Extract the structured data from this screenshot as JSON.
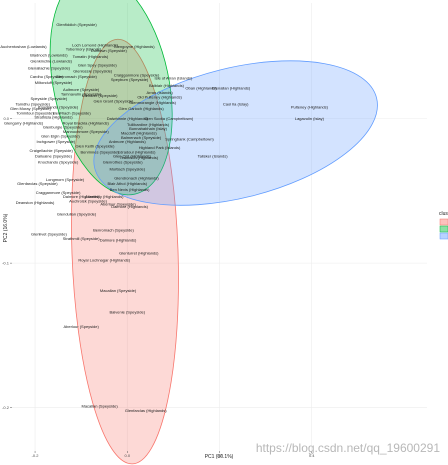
{
  "chart_data": {
    "type": "scatter",
    "xlabel": "PC1 (30.1%)",
    "ylabel": "PC2 (16.0%)",
    "xlim": [
      -0.25,
      0.65
    ],
    "ylim": [
      -0.23,
      0.08
    ],
    "x_ticks": [
      "-0.2",
      "0.0",
      "0.2",
      "0.4"
    ],
    "x_tick_values": [
      -0.2,
      0.0,
      0.2,
      0.4
    ],
    "y_ticks": [
      "0.0",
      "-0.1",
      "-0.2"
    ],
    "y_tick_values": [
      0.0,
      -0.1,
      -0.2
    ],
    "grid": true,
    "legend": {
      "title": "cluster",
      "position": "right",
      "colors": [
        "#F8766D",
        "#00BA38",
        "#619CFF"
      ]
    },
    "groups": [
      {
        "color": "#F8766D",
        "center": [
          -0.005,
          -0.092
        ],
        "rx": 0.115,
        "ry": 0.147,
        "angle": -2
      },
      {
        "color": "#00BA38",
        "center": [
          -0.035,
          0.024
        ],
        "rx": 0.125,
        "ry": 0.078,
        "angle": -12
      },
      {
        "color": "#619CFF",
        "center": [
          0.235,
          -0.01
        ],
        "rx": 0.315,
        "ry": 0.045,
        "angle": -14
      }
    ],
    "points": [
      {
        "name": "Glenfiddich (Speyside)",
        "x": -0.11,
        "y": 0.064
      },
      {
        "name": "Auchentoshan (Lowlands)",
        "x": -0.225,
        "y": 0.049
      },
      {
        "name": "Loch Lomond (Highlands)",
        "x": -0.07,
        "y": 0.05
      },
      {
        "name": "Glengoyne (Highlands)",
        "x": 0.015,
        "y": 0.049
      },
      {
        "name": "Tobermory (Islands)",
        "x": -0.095,
        "y": 0.047
      },
      {
        "name": "Dufftown (Speyside)",
        "x": -0.04,
        "y": 0.046
      },
      {
        "name": "Bladnoch (Lowlands)",
        "x": -0.17,
        "y": 0.043
      },
      {
        "name": "Tomatin (Highlands)",
        "x": -0.08,
        "y": 0.042
      },
      {
        "name": "Glenkinchie (Lowlands)",
        "x": -0.165,
        "y": 0.039
      },
      {
        "name": "Glen Spey (Speyside)",
        "x": -0.065,
        "y": 0.036
      },
      {
        "name": "Glenallachie (Speyside)",
        "x": -0.17,
        "y": 0.034
      },
      {
        "name": "Glenlossie (Speyside)",
        "x": -0.075,
        "y": 0.032
      },
      {
        "name": "Craigganmore (Speyside)",
        "x": 0.02,
        "y": 0.029
      },
      {
        "name": "Cardhu (Speyside)",
        "x": -0.175,
        "y": 0.028
      },
      {
        "name": "Benromach (Speyside)",
        "x": -0.11,
        "y": 0.028
      },
      {
        "name": "Isle of Arran (Islands)",
        "x": 0.1,
        "y": 0.027
      },
      {
        "name": "Speyburn (Speyside)",
        "x": 0.005,
        "y": 0.026
      },
      {
        "name": "Miltonduff (Speyside)",
        "x": -0.16,
        "y": 0.024
      },
      {
        "name": "Balblair (Highlands)",
        "x": 0.085,
        "y": 0.022
      },
      {
        "name": "Oban (Highlands)",
        "x": 0.16,
        "y": 0.02
      },
      {
        "name": "Glenallan (Highlands)",
        "x": 0.225,
        "y": 0.02
      },
      {
        "name": "Aultmore (Speyside)",
        "x": -0.1,
        "y": 0.019
      },
      {
        "name": "Arran (Islands)",
        "x": 0.07,
        "y": 0.017
      },
      {
        "name": "Tamnavulin (Speyside)",
        "x": -0.1,
        "y": 0.016
      },
      {
        "name": "Glenlivet (Speyside)",
        "x": -0.06,
        "y": 0.015
      },
      {
        "name": "Old Pulteney (Highlands)",
        "x": 0.07,
        "y": 0.014
      },
      {
        "name": "Speyside (Speyside)",
        "x": -0.17,
        "y": 0.013
      },
      {
        "name": "Glen Grant (Speyside)",
        "x": -0.03,
        "y": 0.011
      },
      {
        "name": "Glenmorangie (Highlands)",
        "x": 0.055,
        "y": 0.01
      },
      {
        "name": "Caol Ila (Islay)",
        "x": 0.235,
        "y": 0.009
      },
      {
        "name": "Tamdhu (Speyside)",
        "x": -0.205,
        "y": 0.009
      },
      {
        "name": "Knockando (Speyside)",
        "x": -0.15,
        "y": 0.007
      },
      {
        "name": "Glen Moray (Speyside)",
        "x": -0.21,
        "y": 0.006
      },
      {
        "name": "Glen Garioch (Highlands)",
        "x": 0.03,
        "y": 0.006
      },
      {
        "name": "Pulteney (Highlands)",
        "x": 0.395,
        "y": 0.007
      },
      {
        "name": "Tomintoul (Speyside)",
        "x": -0.2,
        "y": 0.003
      },
      {
        "name": "BenRiach (Speyside)",
        "x": -0.12,
        "y": 0.003
      },
      {
        "name": "Glen Scotia (Campbeltown)",
        "x": 0.09,
        "y": -0.001
      },
      {
        "name": "Lagavulin (Islay)",
        "x": 0.395,
        "y": -0.001
      },
      {
        "name": "Strathisla (Highlands)",
        "x": -0.16,
        "y": 0.0
      },
      {
        "name": "Dalwhinnie (Highlands)",
        "x": 0.0,
        "y": -0.001
      },
      {
        "name": "Glengarry (Highlands)",
        "x": -0.225,
        "y": -0.004
      },
      {
        "name": "Royal Brackla (Highlands)",
        "x": -0.09,
        "y": -0.004
      },
      {
        "name": "Tullibardine (Highlands)",
        "x": 0.045,
        "y": -0.005
      },
      {
        "name": "Glenburgie (Speyside)",
        "x": -0.14,
        "y": -0.007
      },
      {
        "name": "Bunnahabhain (Islay)",
        "x": 0.045,
        "y": -0.008
      },
      {
        "name": "Mannochmore (Speyside)",
        "x": -0.09,
        "y": -0.01
      },
      {
        "name": "Macduff (Highlands)",
        "x": 0.025,
        "y": -0.011
      },
      {
        "name": "Glen Elgin (Speyside)",
        "x": -0.145,
        "y": -0.013
      },
      {
        "name": "Balmenach (Speyside)",
        "x": 0.03,
        "y": -0.014
      },
      {
        "name": "Springbank (Campbeltown)",
        "x": 0.135,
        "y": -0.015
      },
      {
        "name": "Inchgower (Speyside)",
        "x": -0.155,
        "y": -0.017
      },
      {
        "name": "Ardmore (Highlands)",
        "x": 0.0,
        "y": -0.017
      },
      {
        "name": "Glen Keith (Speyside)",
        "x": -0.07,
        "y": -0.02
      },
      {
        "name": "Highland Park (Islands)",
        "x": 0.07,
        "y": -0.021
      },
      {
        "name": "Craigellachie (Speyside)",
        "x": -0.165,
        "y": -0.023
      },
      {
        "name": "Benrinnes (Speyside)",
        "x": -0.06,
        "y": -0.024
      },
      {
        "name": "Edradour (Highlands)",
        "x": 0.02,
        "y": -0.024
      },
      {
        "name": "Dailuaine (Speyside)",
        "x": -0.16,
        "y": -0.027
      },
      {
        "name": "Glen Ord (Highlands)",
        "x": 0.01,
        "y": -0.027
      },
      {
        "name": "Talisker (Islands)",
        "x": 0.185,
        "y": -0.027
      },
      {
        "name": "Teaninich (Highlands)",
        "x": 0.025,
        "y": -0.028
      },
      {
        "name": "Knochando (Speyside)",
        "x": -0.15,
        "y": -0.031
      },
      {
        "name": "Glenrothes (Speyside)",
        "x": -0.01,
        "y": -0.031
      },
      {
        "name": "Mortlach (Speyside)",
        "x": 0.0,
        "y": -0.036
      },
      {
        "name": "Longmorn (Speyside)",
        "x": -0.135,
        "y": -0.043
      },
      {
        "name": "Glendronach (Highlands)",
        "x": 0.02,
        "y": -0.042
      },
      {
        "name": "Glenfarclas (Speyside)",
        "x": -0.195,
        "y": -0.046
      },
      {
        "name": "Blair Athol (Highlands)",
        "x": 0.0,
        "y": -0.046
      },
      {
        "name": "Ben Nevis (Highlands)",
        "x": 0.005,
        "y": -0.05
      },
      {
        "name": "Cragganmore (Speyside)",
        "x": -0.15,
        "y": -0.052
      },
      {
        "name": "Dalmore (Highlands)",
        "x": -0.1,
        "y": -0.055
      },
      {
        "name": "Aberfeldy (Highlands)",
        "x": -0.05,
        "y": -0.055
      },
      {
        "name": "Auchroisk (Speyside)",
        "x": -0.085,
        "y": -0.058
      },
      {
        "name": "Deanston (Highlands)",
        "x": -0.2,
        "y": -0.059
      },
      {
        "name": "Aberlour (Speyside)",
        "x": -0.02,
        "y": -0.06
      },
      {
        "name": "Dalmore (Highlands)",
        "x": 0.005,
        "y": -0.062
      },
      {
        "name": "Glendullan (Speyside)",
        "x": -0.11,
        "y": -0.067
      },
      {
        "name": "Benromach (Speyside)",
        "x": -0.03,
        "y": -0.078
      },
      {
        "name": "Glenlivet (Speyside)",
        "x": -0.17,
        "y": -0.081
      },
      {
        "name": "Strathmill (Speyside)",
        "x": -0.1,
        "y": -0.084
      },
      {
        "name": "Dalmore (Highlands)",
        "x": -0.02,
        "y": -0.085
      },
      {
        "name": "Glenturret (Highlands)",
        "x": 0.025,
        "y": -0.094
      },
      {
        "name": "Royal Lochnagar (Highlands)",
        "x": -0.05,
        "y": -0.099
      },
      {
        "name": "Macallan (Speyside)",
        "x": -0.02,
        "y": -0.12
      },
      {
        "name": "Balvenie (Speyside)",
        "x": 0.0,
        "y": -0.135
      },
      {
        "name": "Aberlour (Speyside)",
        "x": -0.1,
        "y": -0.145
      },
      {
        "name": "Macallan (Speyside)",
        "x": -0.06,
        "y": -0.2
      },
      {
        "name": "Glenfarclas (Highlands)",
        "x": 0.04,
        "y": -0.203
      }
    ]
  },
  "watermark": "https://blog.csdn.net/qq_19600291"
}
